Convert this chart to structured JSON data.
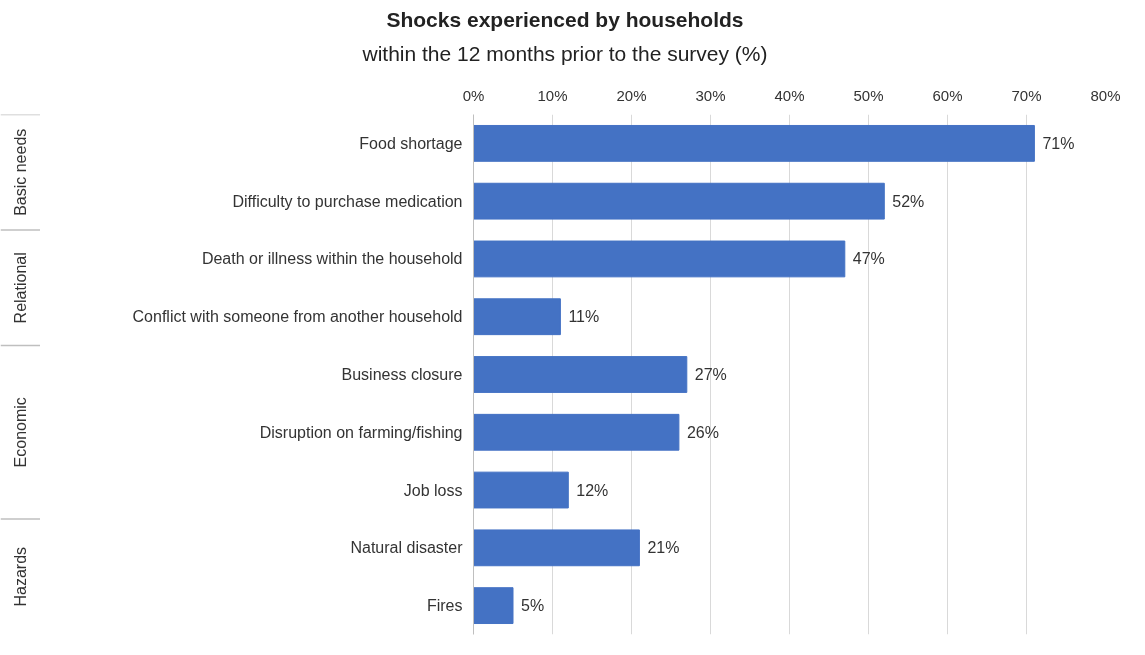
{
  "chart_data": {
    "type": "bar",
    "orientation": "horizontal",
    "title": "Shocks experienced by households",
    "subtitle": "within the 12 months prior to the survey (%)",
    "categories": [
      "Food shortage",
      "Difficulty to purchase medication",
      "Death or illness within the household",
      "Conflict with someone from another household",
      "Business closure",
      "Disruption on farming/fishing",
      "Job loss",
      "Natural disaster",
      "Fires"
    ],
    "values": [
      71,
      52,
      47,
      11,
      27,
      26,
      12,
      21,
      5
    ],
    "value_labels": [
      "71%",
      "52%",
      "47%",
      "11%",
      "27%",
      "26%",
      "12%",
      "21%",
      "5%"
    ],
    "color": "#4472c4",
    "xlim": [
      0,
      80
    ],
    "xticks": [
      {
        "value": 0,
        "label": "0%"
      },
      {
        "value": 10,
        "label": "10%"
      },
      {
        "value": 20,
        "label": "20%"
      },
      {
        "value": 30,
        "label": "30%"
      },
      {
        "value": 40,
        "label": "40%"
      },
      {
        "value": 50,
        "label": "50%"
      },
      {
        "value": 60,
        "label": "60%"
      },
      {
        "value": 70,
        "label": "70%"
      },
      {
        "value": 80,
        "label": "80%"
      }
    ],
    "grid": "x",
    "annotations": [
      "Basic needs",
      "Relational",
      "Economic",
      "Hazards"
    ]
  }
}
